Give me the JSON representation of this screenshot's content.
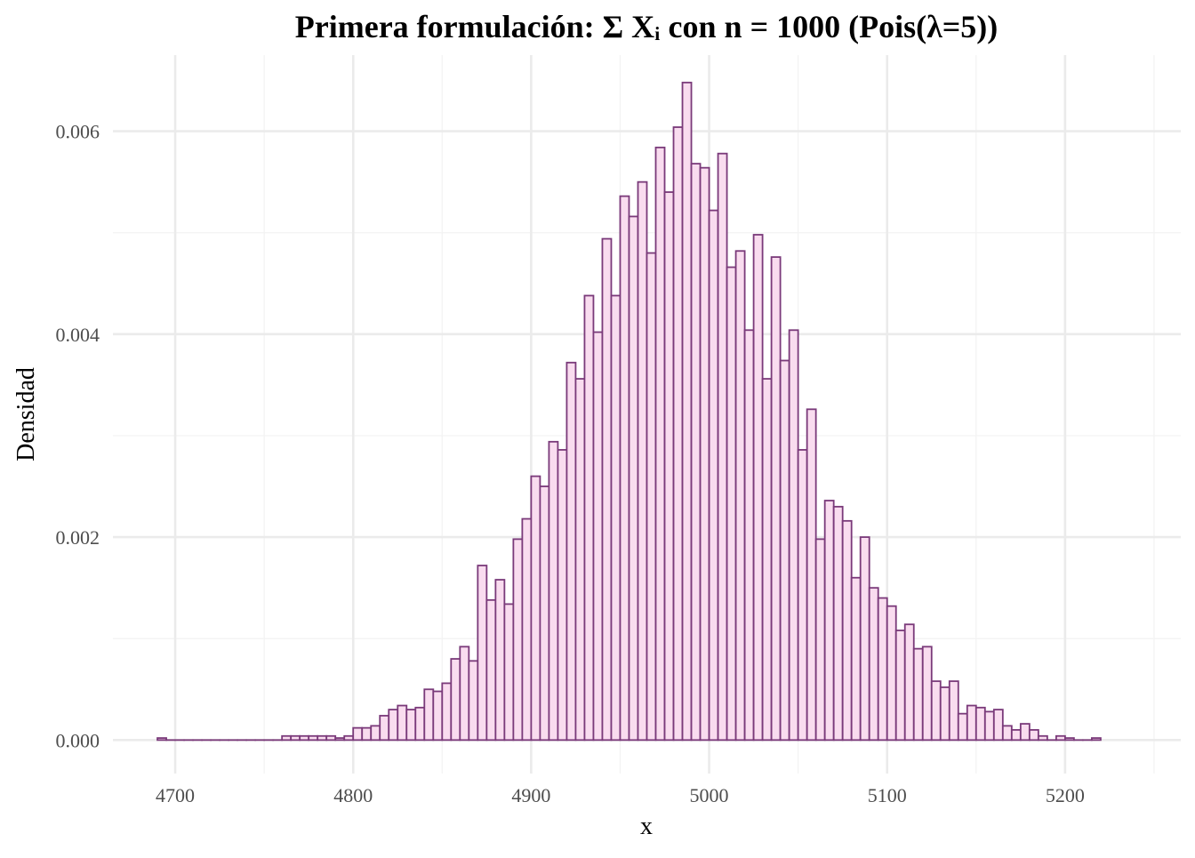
{
  "chart_data": {
    "type": "bar",
    "title": "Primera formulación: Σ Xᵢ con n = 1000 (Pois(λ=5))",
    "xlabel": "x",
    "ylabel": "Densidad",
    "xlim": [
      4665,
      5265
    ],
    "ylim": [
      -0.00033,
      0.00675
    ],
    "x_ticks": [
      4700,
      4800,
      4900,
      5000,
      5100,
      5200
    ],
    "y_ticks": [
      0.0,
      0.002,
      0.004,
      0.006
    ],
    "x_tick_labels": [
      "4700",
      "4800",
      "4900",
      "5000",
      "5100",
      "5200"
    ],
    "y_tick_labels": [
      "0.000",
      "0.002",
      "0.004",
      "0.006"
    ],
    "grid": true,
    "bin_width": 5,
    "bins_start": 4690,
    "fill_color": "#f9dcef",
    "edge_color": "#7a3a7a",
    "values": [
      2e-05,
      0,
      0,
      0,
      0,
      0,
      0,
      0,
      0,
      0,
      0,
      0,
      0,
      0,
      4e-05,
      4e-05,
      4e-05,
      4e-05,
      4e-05,
      4e-05,
      2e-05,
      4e-05,
      0.00012,
      0.00012,
      0.00014,
      0.00024,
      0.0003,
      0.00034,
      0.0003,
      0.00032,
      0.0005,
      0.00048,
      0.00056,
      0.0008,
      0.00092,
      0.00078,
      0.00172,
      0.00138,
      0.00158,
      0.00134,
      0.00198,
      0.00218,
      0.0026,
      0.0025,
      0.00294,
      0.00286,
      0.00372,
      0.00356,
      0.00438,
      0.00402,
      0.00494,
      0.00438,
      0.00536,
      0.00516,
      0.0055,
      0.0048,
      0.00584,
      0.0054,
      0.00604,
      0.00648,
      0.00568,
      0.00564,
      0.00522,
      0.00578,
      0.00466,
      0.00482,
      0.00404,
      0.00498,
      0.00356,
      0.00476,
      0.00374,
      0.00404,
      0.00286,
      0.00326,
      0.00198,
      0.00236,
      0.0023,
      0.00216,
      0.0016,
      0.002,
      0.0015,
      0.0014,
      0.00132,
      0.00108,
      0.00114,
      0.0009,
      0.00092,
      0.00058,
      0.00052,
      0.00058,
      0.00026,
      0.00034,
      0.00032,
      0.00028,
      0.0003,
      0.00014,
      0.0001,
      0.00016,
      0.0001,
      4e-05,
      0,
      4e-05,
      2e-05,
      0,
      0,
      2e-05
    ]
  }
}
